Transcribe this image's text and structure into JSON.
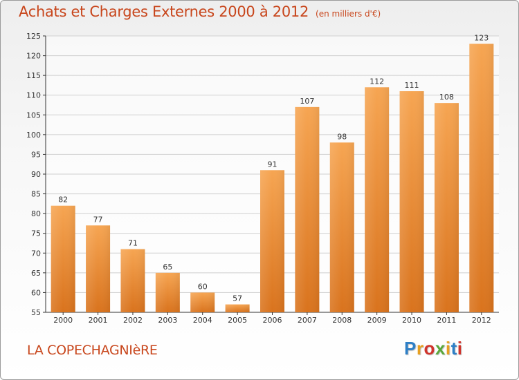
{
  "header": {
    "title": "Achats et Charges Externes 2000 à 2012",
    "unit": "(en milliers d'€)"
  },
  "footer": {
    "commune": "LA COPECHAGNIèRE",
    "brand": {
      "letters": [
        "P",
        "r",
        "o",
        "x",
        "i",
        "t",
        "i"
      ],
      "colors": [
        "#2e7fc6",
        "#e8a020",
        "#d0342c",
        "#5aa83a",
        "#e8a020",
        "#2e7fc6",
        "#d0342c"
      ]
    }
  },
  "colors": {
    "bar_top": "#f6a552",
    "bar_bottom": "#d9731d",
    "title": "#c8461c",
    "grid": "#cfcfcf",
    "axis": "#333333"
  },
  "chart_data": {
    "type": "bar",
    "categories": [
      "2000",
      "2001",
      "2002",
      "2003",
      "2004",
      "2005",
      "2006",
      "2007",
      "2008",
      "2009",
      "2010",
      "2011",
      "2012"
    ],
    "values": [
      82,
      77,
      71,
      65,
      60,
      57,
      91,
      107,
      98,
      112,
      111,
      108,
      123
    ],
    "title": "Achats et Charges Externes 2000 à 2012",
    "xlabel": "",
    "ylabel": "",
    "ylim": [
      55,
      125
    ],
    "yticks": [
      55,
      60,
      65,
      70,
      75,
      80,
      85,
      90,
      95,
      100,
      105,
      110,
      115,
      120,
      125
    ],
    "grid": true,
    "data_labels": true
  }
}
